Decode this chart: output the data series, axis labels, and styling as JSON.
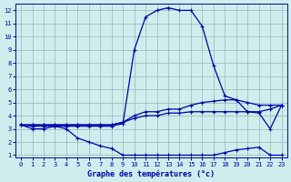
{
  "title": "Graphe des températures (°c)",
  "background_color": "#ceeeed",
  "grid_color": "#9dbfbf",
  "line_color": "#0000aa",
  "hours": [
    0,
    1,
    2,
    3,
    4,
    5,
    6,
    7,
    8,
    9,
    10,
    11,
    12,
    13,
    14,
    15,
    16,
    17,
    18,
    19,
    20,
    21,
    22,
    23
  ],
  "temp_actual": [
    3.3,
    3.0,
    3.0,
    3.2,
    3.2,
    3.2,
    3.2,
    3.2,
    3.2,
    3.4,
    9.0,
    11.5,
    12.0,
    12.2,
    12.0,
    12.0,
    10.8,
    7.8,
    5.5,
    5.2,
    4.3,
    4.2,
    3.0,
    4.8
  ],
  "temp_avg_hi": [
    3.3,
    3.3,
    3.3,
    3.3,
    3.3,
    3.3,
    3.3,
    3.3,
    3.3,
    3.5,
    4.0,
    4.3,
    4.3,
    4.5,
    4.5,
    4.8,
    5.0,
    5.1,
    5.2,
    5.2,
    5.0,
    4.8,
    4.8,
    4.8
  ],
  "temp_avg": [
    3.3,
    3.3,
    3.3,
    3.3,
    3.3,
    3.3,
    3.3,
    3.3,
    3.3,
    3.5,
    3.8,
    4.0,
    4.0,
    4.2,
    4.2,
    4.3,
    4.3,
    4.3,
    4.3,
    4.3,
    4.3,
    4.3,
    4.5,
    4.8
  ],
  "temp_dew": [
    3.3,
    3.2,
    3.2,
    3.2,
    3.0,
    2.3,
    2.0,
    1.7,
    1.5,
    1.0,
    1.0,
    1.0,
    1.0,
    1.0,
    1.0,
    1.0,
    1.0,
    1.0,
    1.2,
    1.4,
    1.5,
    1.6,
    1.0,
    1.0
  ],
  "ylim": [
    0.8,
    12.5
  ],
  "yticks": [
    1,
    2,
    3,
    4,
    5,
    6,
    7,
    8,
    9,
    10,
    11,
    12
  ],
  "xticks": [
    0,
    1,
    2,
    3,
    4,
    5,
    6,
    7,
    8,
    9,
    10,
    11,
    12,
    13,
    14,
    15,
    16,
    17,
    18,
    19,
    20,
    21,
    22,
    23
  ]
}
